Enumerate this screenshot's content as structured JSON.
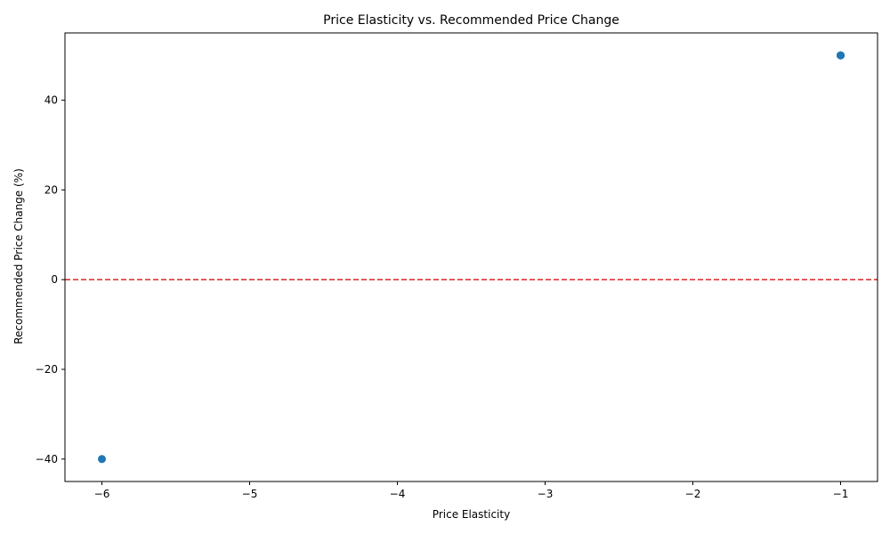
{
  "chart_data": {
    "type": "scatter",
    "title": "Price Elasticity vs. Recommended Price Change",
    "xlabel": "Price Elasticity",
    "ylabel": "Recommended Price Change (%)",
    "xlim": [
      -6.25,
      -0.75
    ],
    "ylim": [
      -45,
      55
    ],
    "xticks": [
      -6,
      -5,
      -4,
      -3,
      -2,
      -1
    ],
    "yticks": [
      -40,
      -20,
      0,
      20,
      40
    ],
    "grid": false,
    "points": [
      {
        "x": -6,
        "y": -40
      },
      {
        "x": -1,
        "y": 50
      },
      {
        "x": -1,
        "y": 50
      },
      {
        "x": -1,
        "y": 50
      }
    ],
    "reference_line": {
      "y": 0,
      "style": "dashed",
      "color": "#d62728"
    },
    "point_color": "#1f77b4"
  }
}
